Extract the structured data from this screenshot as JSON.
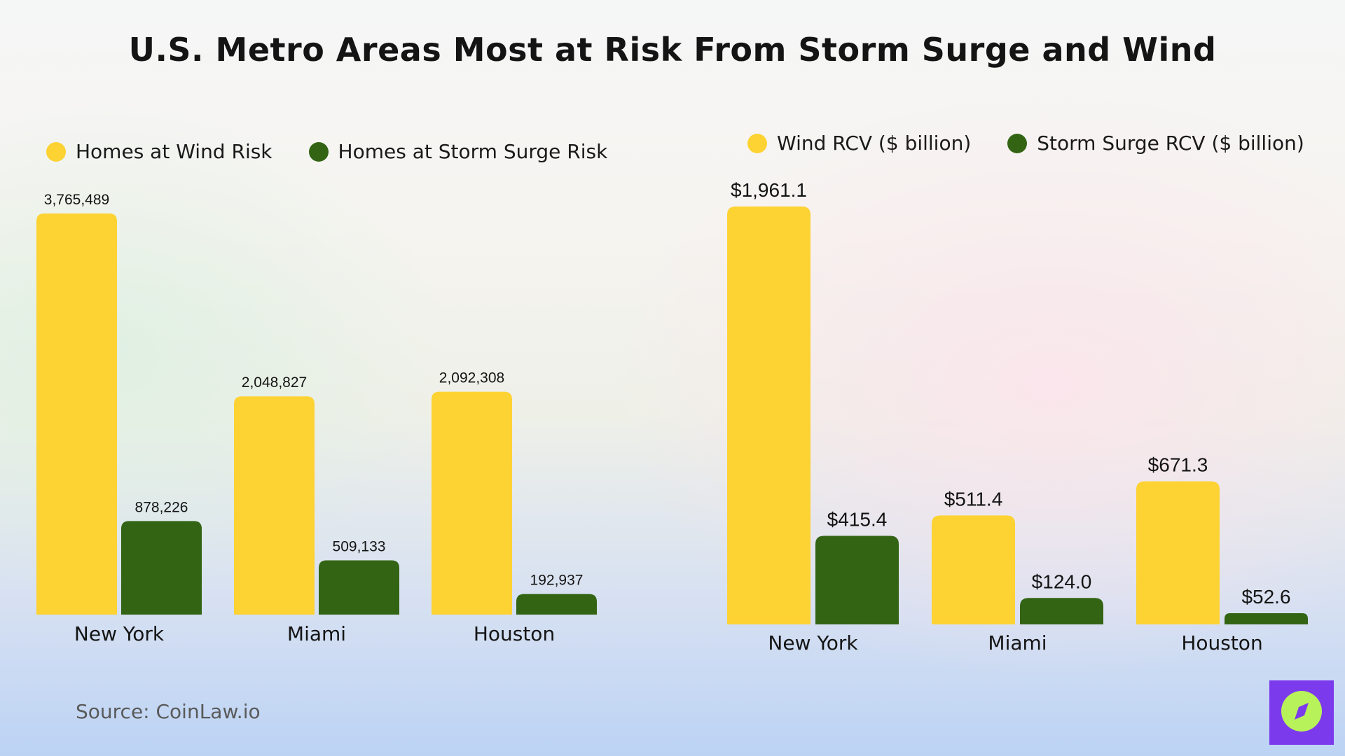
{
  "title": "U.S. Metro Areas Most at Risk From Storm Surge and Wind",
  "source": "Source: CoinLaw.io",
  "colors": {
    "wind": "#fdd233",
    "surge": "#336414",
    "text": "#141414"
  },
  "logo_icon": "compass-icon",
  "chart_data": [
    {
      "type": "bar",
      "categories": [
        "New York",
        "Miami",
        "Houston"
      ],
      "series": [
        {
          "name": "Homes at Wind Risk",
          "values": [
            3765489,
            2048827,
            2092308
          ],
          "labels": [
            "3,765,489",
            "2,048,827",
            "2,092,308"
          ]
        },
        {
          "name": "Homes at Storm Surge Risk",
          "values": [
            878226,
            509133,
            192937
          ],
          "labels": [
            "878,226",
            "509,133",
            "192,937"
          ]
        }
      ],
      "ylim": [
        0,
        3765489
      ],
      "grid": false,
      "legend": "top-left"
    },
    {
      "type": "bar",
      "categories": [
        "New York",
        "Miami",
        "Houston"
      ],
      "series": [
        {
          "name": "Wind RCV ($ billion)",
          "values": [
            1961.1,
            511.4,
            671.3
          ],
          "labels": [
            "$1,961.1",
            "$511.4",
            "$671.3"
          ]
        },
        {
          "name": "Storm Surge RCV ($ billion)",
          "values": [
            415.4,
            124.0,
            52.6
          ],
          "labels": [
            "$415.4",
            "$124.0",
            "$52.6"
          ]
        }
      ],
      "ylim": [
        0,
        1961.1
      ],
      "grid": false,
      "legend": "top-right"
    }
  ]
}
